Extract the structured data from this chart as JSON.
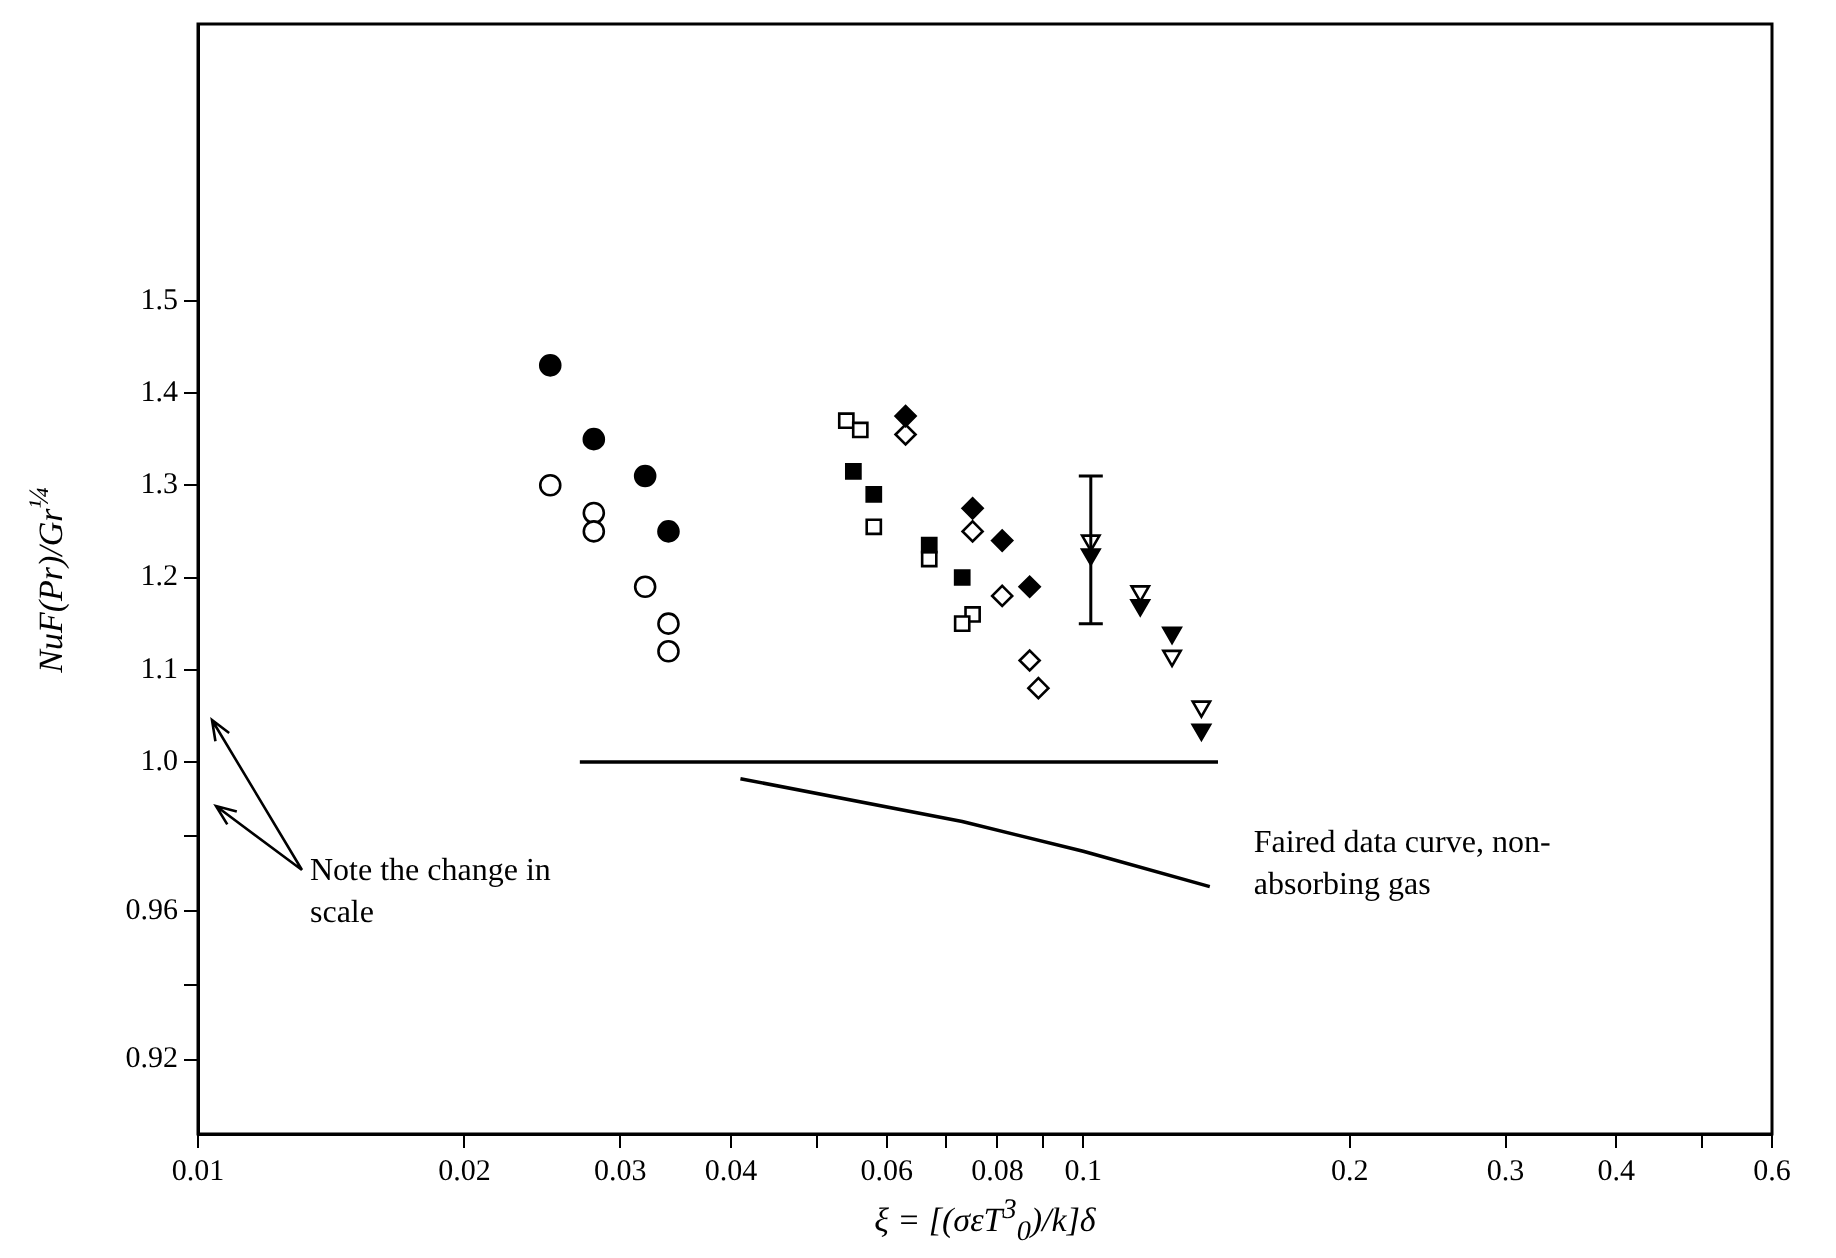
{
  "chart_data": [
    {
      "type": "scatter",
      "ylabel": "NuF(Pr)/Gr$^{¼}$",
      "log": "x",
      "tick_labels": "y",
      "xlim": [
        0.01,
        0.6
      ],
      "ylim": [
        1.0,
        1.8
      ],
      "yticks": [
        {
          "value": 1.1,
          "label": "1.1"
        },
        {
          "value": 1.2,
          "label": "1.2"
        },
        {
          "value": 1.3,
          "label": "1.3"
        },
        {
          "value": 1.4,
          "label": "1.4"
        },
        {
          "value": 1.5,
          "label": "1.5"
        }
      ],
      "series": [
        {
          "color": "#000000",
          "marker": "circle",
          "x": [
            0.025,
            0.028,
            0.032,
            0.034
          ],
          "values": [
            1.43,
            1.35,
            1.31,
            1.25
          ]
        },
        {
          "color": "#ffffff",
          "marker": "circle",
          "x": [
            0.025,
            0.028,
            0.028,
            0.032,
            0.034,
            0.034
          ],
          "values": [
            1.3,
            1.27,
            1.25,
            1.19,
            1.15,
            1.12
          ]
        },
        {
          "color": "#000000",
          "marker": "square",
          "x": [
            0.055,
            0.058,
            0.067,
            0.073
          ],
          "values": [
            1.315,
            1.29,
            1.235,
            1.2
          ]
        },
        {
          "color": "#ffffff",
          "marker": "square",
          "x": [
            0.054,
            0.056,
            0.058,
            0.067,
            0.075,
            0.073
          ],
          "values": [
            1.37,
            1.36,
            1.255,
            1.22,
            1.16,
            1.15
          ]
        },
        {
          "color": "#000000",
          "marker": "diamond",
          "x": [
            0.063,
            0.075,
            0.081,
            0.087
          ],
          "values": [
            1.375,
            1.275,
            1.24,
            1.19
          ]
        },
        {
          "color": "#ffffff",
          "marker": "diamond",
          "x": [
            0.063,
            0.075,
            0.081,
            0.087,
            0.089
          ],
          "values": [
            1.355,
            1.25,
            1.18,
            1.11,
            1.08
          ]
        },
        {
          "color": "#000000",
          "marker": "triangle",
          "x": [
            0.102,
            0.116,
            0.126,
            0.136
          ],
          "values": [
            1.225,
            1.17,
            1.14,
            1.035
          ],
          "errors": [
            [
              1.15,
              1.31
            ],
            null,
            null,
            null
          ]
        },
        {
          "color": "#ffffff",
          "marker": "triangle",
          "x": [
            0.102,
            0.116,
            0.126,
            0.136
          ],
          "values": [
            1.24,
            1.185,
            1.115,
            1.06
          ]
        }
      ]
    },
    {
      "type": "line",
      "xlabel": "ξ = [(σεT$^{3}$$_{0}$)/k]δ",
      "log": "x",
      "xlim": [
        0.01,
        0.6
      ],
      "xticks": [
        {
          "value": 0.01,
          "label": "0.01"
        },
        {
          "value": 0.02,
          "label": "0.02"
        },
        {
          "value": 0.03,
          "label": "0.03"
        },
        {
          "value": 0.04,
          "label": "0.04"
        },
        {
          "value": 0.05,
          "label": null
        },
        {
          "value": 0.06,
          "label": "0.06"
        },
        {
          "value": 0.07,
          "label": null
        },
        {
          "value": 0.08,
          "label": "0.08"
        },
        {
          "value": 0.09,
          "label": null
        },
        {
          "value": 0.1,
          "label": "0.1"
        },
        {
          "value": 0.2,
          "label": "0.2"
        },
        {
          "value": 0.3,
          "label": "0.3"
        },
        {
          "value": 0.4,
          "label": "0.4"
        },
        {
          "value": 0.5,
          "label": null
        },
        {
          "value": 0.6,
          "label": "0.6"
        }
      ],
      "ylim": [
        0.9,
        1.0
      ],
      "yticks": [
        {
          "value": 0.92,
          "label": "0.92"
        },
        {
          "value": 0.94,
          "label": null
        },
        {
          "value": 0.96,
          "label": "0.96"
        },
        {
          "value": 0.98,
          "label": null
        },
        {
          "value": 1.0,
          "label": "1.0"
        }
      ],
      "marker": "none",
      "line_style": "solid",
      "series": [
        {
          "color": "#000000",
          "x": [
            0.027,
            0.142
          ],
          "values": [
            1.0,
            1.0
          ]
        },
        {
          "color": "#000000",
          "x": [
            0.041,
            0.073,
            0.1,
            0.139
          ],
          "values": [
            0.9955,
            0.984,
            0.976,
            0.9665
          ]
        }
      ],
      "annotations": [
        "Faired data curve, non-absorbing gas",
        "Note the change in scale"
      ]
    }
  ]
}
